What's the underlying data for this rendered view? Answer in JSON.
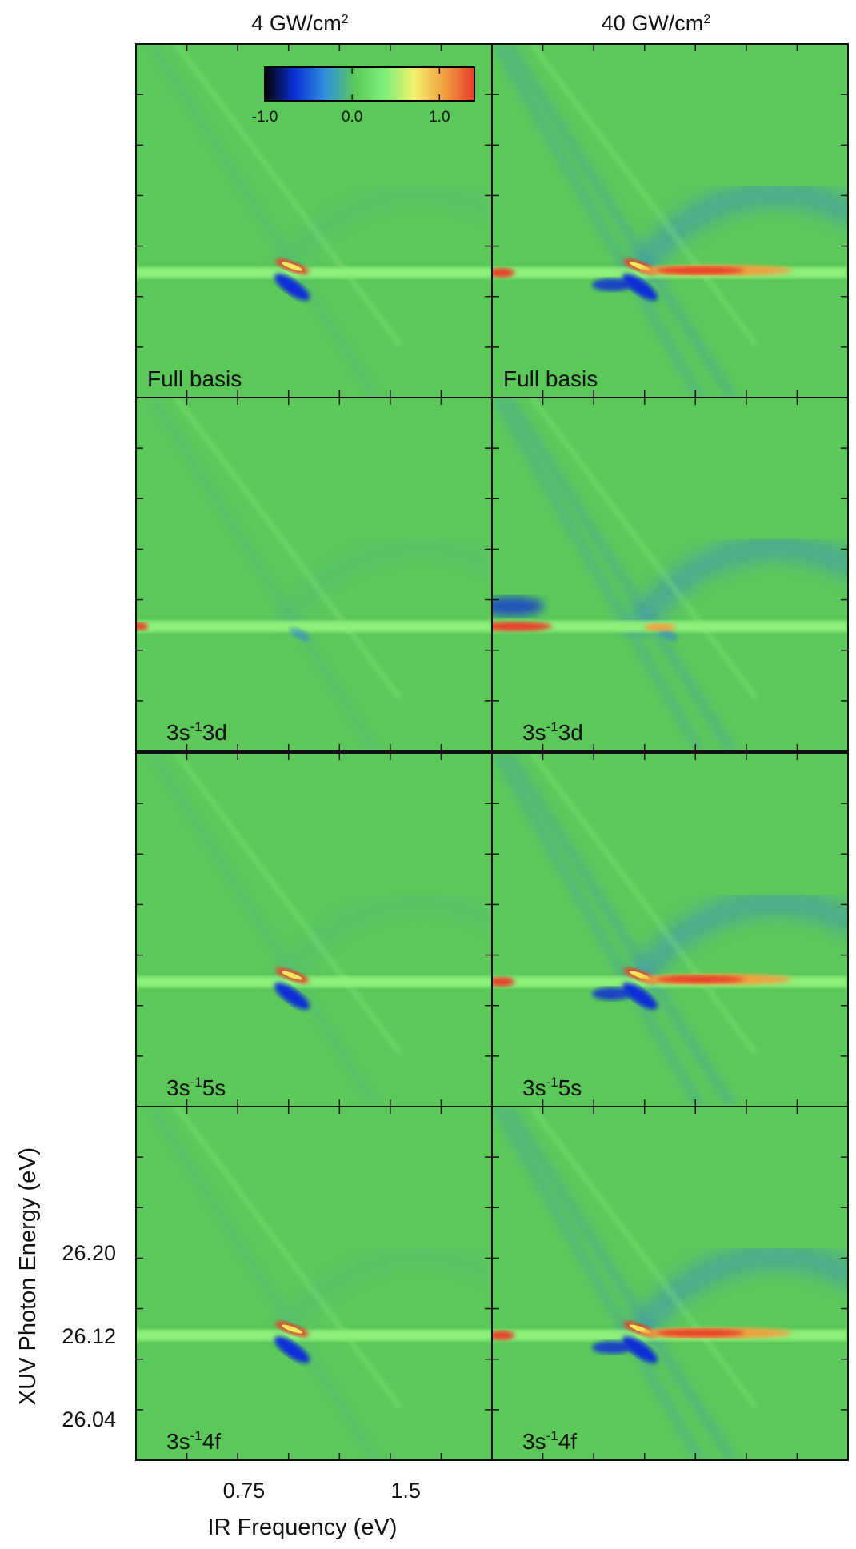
{
  "chart_data": {
    "type": "heatmap",
    "columns": [
      {
        "title_main": "4 GW/cm",
        "title_sup": "2"
      },
      {
        "title_main": "40 GW/cm",
        "title_sup": "2"
      }
    ],
    "rows": [
      {
        "label": [
          {
            "t": "Full basis",
            "sup": false
          }
        ]
      },
      {
        "label": [
          {
            "t": "3s",
            "sup": false
          },
          {
            "t": "-1",
            "sup": true
          },
          {
            "t": "3d",
            "sup": false
          }
        ]
      },
      {
        "label": [
          {
            "t": "3s",
            "sup": false
          },
          {
            "t": "-1",
            "sup": true
          },
          {
            "t": "5s",
            "sup": false
          }
        ]
      },
      {
        "label": [
          {
            "t": "3s",
            "sup": false
          },
          {
            "t": "-1",
            "sup": true
          },
          {
            "t": "4f",
            "sup": false
          }
        ]
      }
    ],
    "xlabel": "IR Frequency (eV)",
    "ylabel": "XUV Photon Energy (eV)",
    "xlim": [
      0.25,
      1.9
    ],
    "ylim": [
      26.0,
      26.34
    ],
    "xticks": [
      0.75,
      1.5
    ],
    "xtick_labels": [
      "0.75",
      "1.5"
    ],
    "yticks": [
      26.04,
      26.12,
      26.2
    ],
    "ytick_labels": [
      "26.04",
      "26.12",
      "26.20"
    ],
    "colorbar": {
      "ticks": [
        -1.0,
        0.0,
        1.0
      ],
      "tick_labels": [
        "-1.0",
        "0.0",
        "1.0"
      ],
      "range": [
        -1.0,
        1.4
      ],
      "colors": [
        "#000000",
        "#0a2fd6",
        "#2e8fe0",
        "#5cc85a",
        "#7cf07a",
        "#f2f06a",
        "#f0a040",
        "#e83a2a"
      ]
    },
    "background_color": "#5cc85a",
    "resonance_energy": 26.12
  }
}
